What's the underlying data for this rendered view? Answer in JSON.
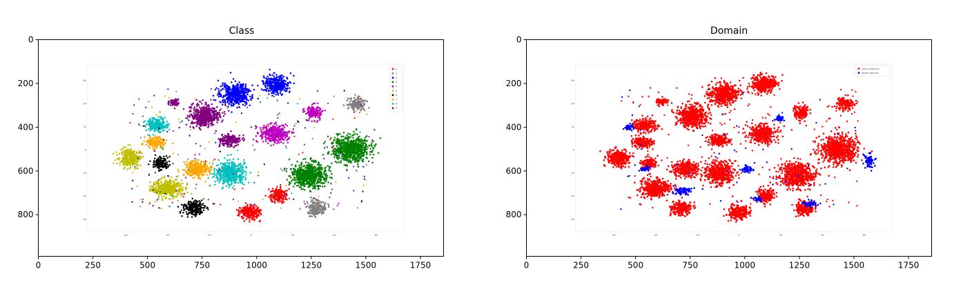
{
  "chart_data": [
    {
      "type": "scatter",
      "title": "Class",
      "xlabel": "",
      "ylabel": "",
      "xlim": [
        0,
        1856
      ],
      "ylim": [
        990,
        0
      ],
      "xticks": [
        "0",
        "250",
        "500",
        "750",
        "1000",
        "1250",
        "1500",
        "1750"
      ],
      "yticks": [
        "0",
        "200",
        "400",
        "600",
        "800"
      ],
      "grid": false,
      "description_of_image": "embedded t-SNE scatter image with 10 class-colored clusters",
      "inner_legend": [
        "0",
        "1",
        "2",
        "3",
        "4",
        "5",
        "6",
        "7",
        "8",
        "9"
      ],
      "inner_x_ticks": [
        "-60",
        "-40",
        "-20",
        "0",
        "20",
        "40",
        "60"
      ],
      "inner_y_ticks": [
        "60",
        "40",
        "20",
        "0",
        "-20",
        "-40",
        "-60"
      ],
      "clusters": [
        {
          "color": "#0000ff",
          "cx": 1090,
          "cy": 205,
          "rx": 65,
          "ry": 45
        },
        {
          "color": "#0000ff",
          "cx": 900,
          "cy": 250,
          "rx": 75,
          "ry": 55
        },
        {
          "color": "#808080",
          "cx": 1460,
          "cy": 295,
          "rx": 45,
          "ry": 30
        },
        {
          "color": "#808080",
          "cx": 1275,
          "cy": 770,
          "rx": 45,
          "ry": 38
        },
        {
          "color": "#bf00bf",
          "cx": 1260,
          "cy": 330,
          "rx": 40,
          "ry": 35
        },
        {
          "color": "#bf00bf",
          "cx": 1080,
          "cy": 430,
          "rx": 70,
          "ry": 45
        },
        {
          "color": "#800080",
          "cx": 760,
          "cy": 350,
          "rx": 75,
          "ry": 55
        },
        {
          "color": "#800080",
          "cx": 620,
          "cy": 285,
          "rx": 30,
          "ry": 18
        },
        {
          "color": "#800080",
          "cx": 880,
          "cy": 460,
          "rx": 55,
          "ry": 30
        },
        {
          "color": "#008000",
          "cx": 1430,
          "cy": 500,
          "rx": 95,
          "ry": 65
        },
        {
          "color": "#008000",
          "cx": 1240,
          "cy": 620,
          "rx": 90,
          "ry": 60
        },
        {
          "color": "#00bfbf",
          "cx": 540,
          "cy": 390,
          "rx": 55,
          "ry": 35
        },
        {
          "color": "#00bfbf",
          "cx": 880,
          "cy": 610,
          "rx": 75,
          "ry": 55
        },
        {
          "color": "#ffa500",
          "cx": 535,
          "cy": 470,
          "rx": 50,
          "ry": 28
        },
        {
          "color": "#ffa500",
          "cx": 730,
          "cy": 590,
          "rx": 65,
          "ry": 40
        },
        {
          "color": "#bfbf00",
          "cx": 420,
          "cy": 540,
          "rx": 55,
          "ry": 45
        },
        {
          "color": "#bfbf00",
          "cx": 590,
          "cy": 680,
          "rx": 75,
          "ry": 45
        },
        {
          "color": "#000000",
          "cx": 560,
          "cy": 565,
          "rx": 40,
          "ry": 30
        },
        {
          "color": "#000000",
          "cx": 710,
          "cy": 770,
          "rx": 55,
          "ry": 35
        },
        {
          "color": "#ff0000",
          "cx": 970,
          "cy": 790,
          "rx": 50,
          "ry": 38
        },
        {
          "color": "#ff0000",
          "cx": 1100,
          "cy": 710,
          "rx": 45,
          "ry": 35
        }
      ],
      "legend_colors": [
        "#ff0000",
        "#808080",
        "#0000ff",
        "#008000",
        "#bf00bf",
        "#bfbf00",
        "#000000",
        "#ffa500",
        "#00bfbf",
        "#800080"
      ]
    },
    {
      "type": "scatter",
      "title": "Domain",
      "xlabel": "",
      "ylabel": "",
      "xlim": [
        0,
        1856
      ],
      "ylim": [
        990,
        0
      ],
      "xticks": [
        "0",
        "250",
        "500",
        "750",
        "1000",
        "1250",
        "1500",
        "1750"
      ],
      "yticks": [
        "0",
        "200",
        "400",
        "600",
        "800"
      ],
      "grid": false,
      "description_of_image": "embedded t-SNE scatter image colored by domain",
      "inner_legend": [
        "source domain",
        "target domain"
      ],
      "inner_x_ticks": [
        "-60",
        "-40",
        "-20",
        "0",
        "20",
        "40",
        "60"
      ],
      "inner_y_ticks": [
        "60",
        "40",
        "20",
        "0",
        "-20",
        "-40",
        "-60"
      ],
      "legend_colors": [
        "#ff0000",
        "#0000ff"
      ],
      "blue_clusters": [
        {
          "cx": 1570,
          "cy": 555,
          "rx": 25,
          "ry": 35
        },
        {
          "cx": 1160,
          "cy": 360,
          "rx": 25,
          "ry": 15
        },
        {
          "cx": 1010,
          "cy": 590,
          "rx": 30,
          "ry": 20
        },
        {
          "cx": 720,
          "cy": 690,
          "rx": 45,
          "ry": 18
        },
        {
          "cx": 1060,
          "cy": 730,
          "rx": 25,
          "ry": 15
        },
        {
          "cx": 1300,
          "cy": 750,
          "rx": 40,
          "ry": 15
        },
        {
          "cx": 470,
          "cy": 400,
          "rx": 25,
          "ry": 15
        },
        {
          "cx": 540,
          "cy": 590,
          "rx": 25,
          "ry": 15
        }
      ]
    }
  ]
}
